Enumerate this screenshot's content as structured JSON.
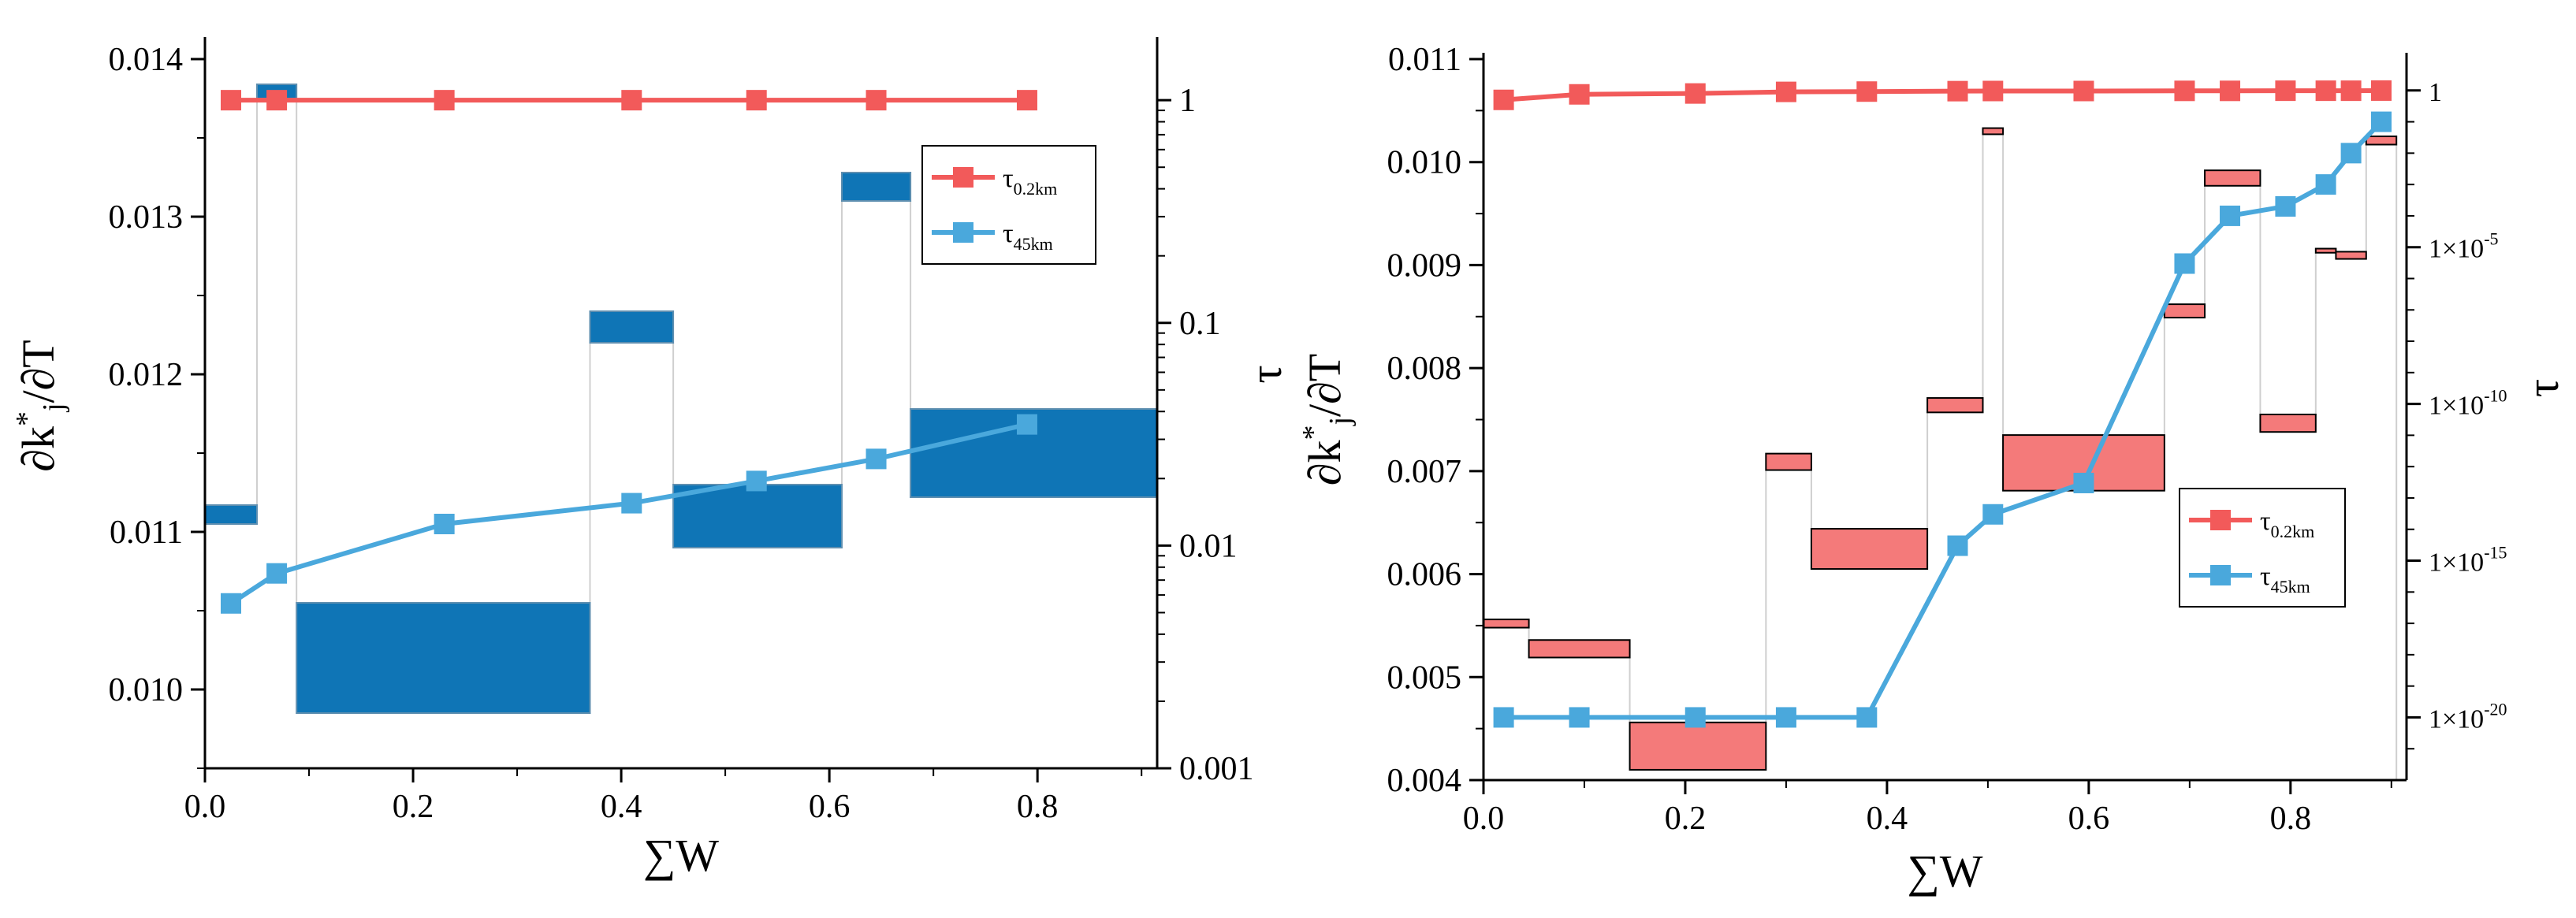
{
  "colors": {
    "red_series": "#f25a5a",
    "blue_series": "#4aa8dc",
    "left_box_fill": "#0f75b6",
    "left_box_stroke": "#5f8fb0",
    "right_box_fill": "#f47a7a",
    "right_box_stroke": "#000000",
    "connector": "#cfcfcf",
    "axis": "#000000"
  },
  "chart_data": [
    {
      "type": "bar",
      "description_type": "waterfall boxes with dual-axis line overlay",
      "xlabel": "∑W",
      "ylabel_left": "∂k*j/∂T",
      "ylabel_right": "τ",
      "xlim": [
        0,
        0.915
      ],
      "ylim_left": [
        0.0095,
        0.0141
      ],
      "ylim_right_log": [
        0.001,
        1.8
      ],
      "x_ticks": [
        "0.0",
        "0.2",
        "0.4",
        "0.6",
        "0.8"
      ],
      "y_ticks_left": [
        "0.010",
        "0.011",
        "0.012",
        "0.013",
        "0.014"
      ],
      "y_ticks_right": [
        "0.001",
        "0.01",
        "0.1",
        "1"
      ],
      "boxes": [
        {
          "x0": 0.0,
          "x1": 0.05,
          "y0": 0.01105,
          "y1": 0.01117
        },
        {
          "x0": 0.05,
          "x1": 0.088,
          "y0": 0.01375,
          "y1": 0.01384
        },
        {
          "x0": 0.088,
          "x1": 0.37,
          "y0": 0.00985,
          "y1": 0.01055
        },
        {
          "x0": 0.37,
          "x1": 0.45,
          "y0": 0.0122,
          "y1": 0.0124
        },
        {
          "x0": 0.45,
          "x1": 0.612,
          "y0": 0.0109,
          "y1": 0.0113
        },
        {
          "x0": 0.612,
          "x1": 0.678,
          "y0": 0.0131,
          "y1": 0.01328
        },
        {
          "x0": 0.678,
          "x1": 0.915,
          "y0": 0.01122,
          "y1": 0.01178
        }
      ],
      "legend": {
        "position": "top-right",
        "entries": [
          "τ_0.2km",
          "τ_45km"
        ],
        "main": "τ",
        "subs": [
          "0.2km",
          "45km"
        ]
      },
      "series": [
        {
          "name": "τ_0.2km",
          "color_key": "red_series",
          "x": [
            0.025,
            0.069,
            0.23,
            0.41,
            0.53,
            0.645,
            0.79
          ],
          "y": [
            1.0,
            1.0,
            1.0,
            1.0,
            1.0,
            1.0,
            1.0
          ]
        },
        {
          "name": "τ_45km",
          "color_key": "blue_series",
          "x": [
            0.025,
            0.069,
            0.23,
            0.41,
            0.53,
            0.645,
            0.79
          ],
          "y": [
            0.0055,
            0.0075,
            0.0125,
            0.0155,
            0.0195,
            0.0245,
            0.035
          ]
        }
      ]
    },
    {
      "type": "bar",
      "description_type": "waterfall boxes with dual-axis line overlay",
      "xlabel": "∑W",
      "ylabel_left": "∂k*j/∂T",
      "ylabel_right": "τ",
      "xlim": [
        0,
        0.915
      ],
      "ylim_left": [
        0.004,
        0.011
      ],
      "ylim_right_log": [
        1e-22,
        10
      ],
      "x_ticks": [
        "0.0",
        "0.2",
        "0.4",
        "0.6",
        "0.8"
      ],
      "y_ticks_left": [
        "0.004",
        "0.005",
        "0.006",
        "0.007",
        "0.008",
        "0.009",
        "0.010",
        "0.011"
      ],
      "y_ticks_right": [
        "1×10-20",
        "1×10-15",
        "1×10-10",
        "1×10-5",
        "1"
      ],
      "y_ticks_right_parts": [
        {
          "mant": "1×10",
          "exp": "-20"
        },
        {
          "mant": "1×10",
          "exp": "-15"
        },
        {
          "mant": "1×10",
          "exp": "-10"
        },
        {
          "mant": "1×10",
          "exp": "-5"
        },
        {
          "mant": "1",
          "exp": ""
        }
      ],
      "y_ticks_right_values": [
        1e-20,
        1e-15,
        1e-10,
        1e-05,
        1
      ],
      "boxes": [
        {
          "x0": 0.0,
          "x1": 0.045,
          "y0": 0.00548,
          "y1": 0.00556
        },
        {
          "x0": 0.045,
          "x1": 0.145,
          "y0": 0.00519,
          "y1": 0.00536
        },
        {
          "x0": 0.145,
          "x1": 0.28,
          "y0": 0.0041,
          "y1": 0.00456
        },
        {
          "x0": 0.28,
          "x1": 0.325,
          "y0": 0.00701,
          "y1": 0.00717
        },
        {
          "x0": 0.325,
          "x1": 0.44,
          "y0": 0.00605,
          "y1": 0.00644
        },
        {
          "x0": 0.44,
          "x1": 0.495,
          "y0": 0.00757,
          "y1": 0.00771
        },
        {
          "x0": 0.495,
          "x1": 0.515,
          "y0": 0.01027,
          "y1": 0.01033
        },
        {
          "x0": 0.515,
          "x1": 0.675,
          "y0": 0.00681,
          "y1": 0.00735
        },
        {
          "x0": 0.675,
          "x1": 0.715,
          "y0": 0.00849,
          "y1": 0.00862
        },
        {
          "x0": 0.715,
          "x1": 0.77,
          "y0": 0.00977,
          "y1": 0.00992
        },
        {
          "x0": 0.77,
          "x1": 0.825,
          "y0": 0.00738,
          "y1": 0.00755
        },
        {
          "x0": 0.825,
          "x1": 0.845,
          "y0": 0.00912,
          "y1": 0.00916
        },
        {
          "x0": 0.845,
          "x1": 0.875,
          "y0": 0.00906,
          "y1": 0.00913
        },
        {
          "x0": 0.875,
          "x1": 0.905,
          "y0": 0.01017,
          "y1": 0.01025
        }
      ],
      "legend": {
        "position": "center-right",
        "entries": [
          "τ_0.2km",
          "τ_45km"
        ],
        "main": "τ",
        "subs": [
          "0.2km",
          "45km"
        ]
      },
      "series": [
        {
          "name": "τ_0.2km",
          "color_key": "red_series",
          "x": [
            0.02,
            0.095,
            0.21,
            0.3,
            0.38,
            0.47,
            0.505,
            0.595,
            0.695,
            0.74,
            0.795,
            0.835,
            0.86,
            0.89
          ],
          "y": [
            0.5,
            0.75,
            0.8,
            0.9,
            0.92,
            0.95,
            0.96,
            0.96,
            0.97,
            0.97,
            0.98,
            0.98,
            0.98,
            0.99
          ]
        },
        {
          "name": "τ_45km",
          "color_key": "blue_series",
          "x": [
            0.02,
            0.095,
            0.21,
            0.3,
            0.38,
            0.47,
            0.505,
            0.595,
            0.695,
            0.74,
            0.795,
            0.835,
            0.86,
            0.89
          ],
          "y": [
            1e-20,
            1e-20,
            1e-20,
            1e-20,
            1e-20,
            3e-15,
            3e-14,
            3e-13,
            3e-06,
            0.0001,
            0.0002,
            0.001,
            0.01,
            0.1
          ]
        }
      ]
    }
  ]
}
